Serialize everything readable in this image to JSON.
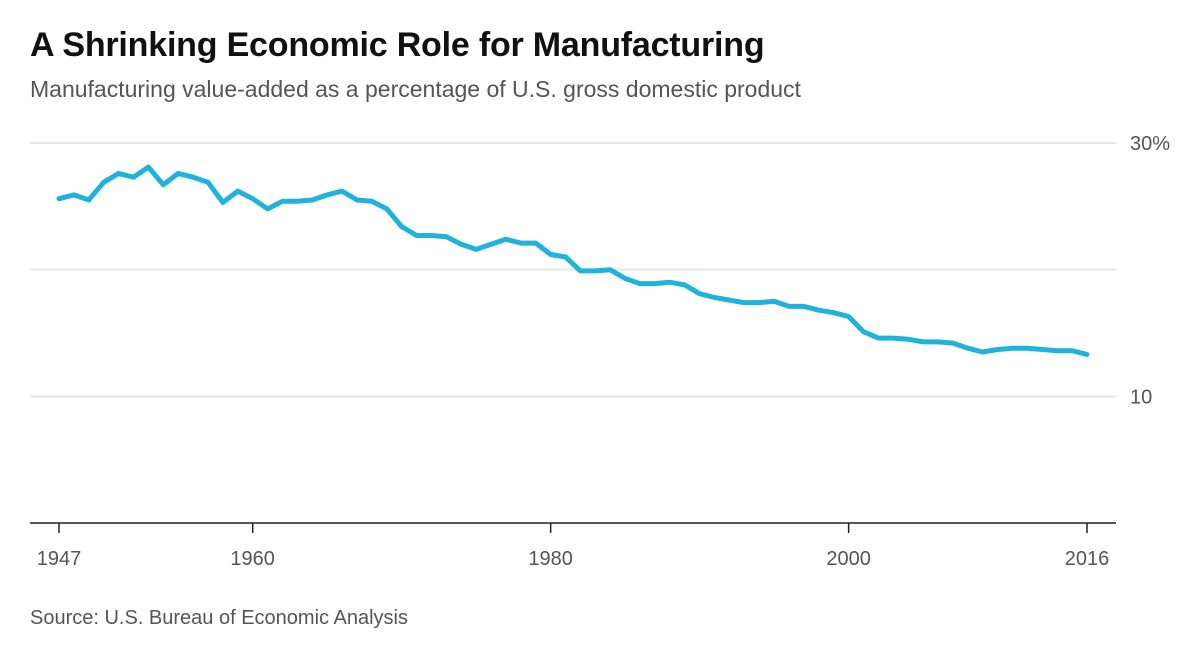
{
  "header": {
    "title": "A Shrinking Economic Role for Manufacturing",
    "subtitle": "Manufacturing value-added as a percentage of U.S. gross domestic product"
  },
  "footer": {
    "source": "Source: U.S. Bureau of Economic Analysis"
  },
  "colors": {
    "line": "#1fb2da",
    "grid": "#e6e6e6",
    "axis": "#222222"
  },
  "chart_data": {
    "type": "line",
    "title": "A Shrinking Economic Role for Manufacturing",
    "xlabel": "",
    "ylabel": "",
    "xlim": [
      1947,
      2016
    ],
    "ylim": [
      0,
      30
    ],
    "grid": true,
    "y_ticks": [
      {
        "value": 30,
        "label": "30%"
      },
      {
        "value": 20,
        "label": ""
      },
      {
        "value": 10,
        "label": "10"
      }
    ],
    "x_ticks": [
      {
        "value": 1947,
        "label": "1947"
      },
      {
        "value": 1960,
        "label": "1960"
      },
      {
        "value": 1980,
        "label": "1980"
      },
      {
        "value": 2000,
        "label": "2000"
      },
      {
        "value": 2016,
        "label": "2016"
      }
    ],
    "series": [
      {
        "name": "",
        "x": [
          1947,
          1948,
          1949,
          1950,
          1951,
          1952,
          1953,
          1954,
          1955,
          1956,
          1957,
          1958,
          1959,
          1960,
          1961,
          1962,
          1963,
          1964,
          1965,
          1966,
          1967,
          1968,
          1969,
          1970,
          1971,
          1972,
          1973,
          1974,
          1975,
          1976,
          1977,
          1978,
          1979,
          1980,
          1981,
          1982,
          1983,
          1984,
          1985,
          1986,
          1987,
          1988,
          1989,
          1990,
          1991,
          1992,
          1993,
          1994,
          1995,
          1996,
          1997,
          1998,
          1999,
          2000,
          2001,
          2002,
          2003,
          2004,
          2005,
          2006,
          2007,
          2008,
          2009,
          2010,
          2011,
          2012,
          2013,
          2014,
          2015,
          2016
        ],
        "values": [
          25.6,
          25.9,
          25.5,
          26.9,
          27.6,
          27.3,
          28.1,
          26.7,
          27.6,
          27.3,
          26.9,
          25.3,
          26.2,
          25.6,
          24.8,
          25.4,
          25.4,
          25.5,
          25.9,
          26.2,
          25.5,
          25.4,
          24.8,
          23.4,
          22.7,
          22.7,
          22.6,
          22.0,
          21.6,
          22.0,
          22.4,
          22.1,
          22.1,
          21.2,
          21.0,
          19.9,
          19.9,
          20.0,
          19.3,
          18.9,
          18.9,
          19.0,
          18.8,
          18.1,
          17.8,
          17.6,
          17.4,
          17.4,
          17.5,
          17.1,
          17.1,
          16.8,
          16.6,
          16.3,
          15.1,
          14.6,
          14.6,
          14.5,
          14.3,
          14.3,
          14.2,
          13.8,
          13.5,
          13.7,
          13.8,
          13.8,
          13.7,
          13.6,
          13.6,
          13.3
        ]
      }
    ]
  }
}
